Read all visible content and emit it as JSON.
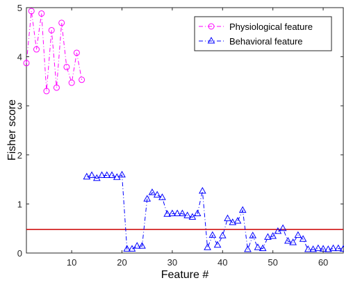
{
  "chart_data": {
    "type": "line",
    "xlabel": "Feature #",
    "ylabel": "Fisher score",
    "xlim": [
      1,
      64
    ],
    "ylim": [
      0,
      5
    ],
    "xticks": [
      "10",
      "20",
      "30",
      "40",
      "50",
      "60"
    ],
    "xtick_values": [
      10,
      20,
      30,
      40,
      50,
      60
    ],
    "yticks": [
      "0",
      "1",
      "2",
      "3",
      "4",
      "5"
    ],
    "ytick_values": [
      0,
      1,
      2,
      3,
      4,
      5
    ],
    "grid": false,
    "legend_position": "top-right",
    "threshold": {
      "y": 0.48,
      "color": "#cc0000"
    },
    "series": [
      {
        "name": "Physiological feature",
        "color": "#ff00ff",
        "marker": "circle",
        "line_style": "dash-dot",
        "x": [
          1,
          2,
          3,
          4,
          5,
          6,
          7,
          8,
          9,
          10,
          11,
          12
        ],
        "y": [
          3.87,
          4.93,
          4.15,
          4.88,
          3.3,
          4.54,
          3.37,
          4.69,
          3.79,
          3.47,
          4.08,
          3.53
        ]
      },
      {
        "name": "Behavioral feature",
        "color": "#0000ff",
        "marker": "triangle",
        "line_style": "dash-dot",
        "x": [
          13,
          14,
          15,
          16,
          17,
          18,
          19,
          20,
          21,
          22,
          23,
          24,
          25,
          26,
          27,
          28,
          29,
          30,
          31,
          32,
          33,
          34,
          35,
          36,
          37,
          38,
          39,
          40,
          41,
          42,
          43,
          44,
          45,
          46,
          47,
          48,
          49,
          50,
          51,
          52,
          53,
          54,
          55,
          56,
          57,
          58,
          59,
          60,
          61,
          62,
          63,
          64
        ],
        "y": [
          1.55,
          1.58,
          1.52,
          1.58,
          1.58,
          1.58,
          1.54,
          1.59,
          0.08,
          0.08,
          0.14,
          0.14,
          1.1,
          1.23,
          1.18,
          1.13,
          0.79,
          0.8,
          0.8,
          0.8,
          0.76,
          0.73,
          0.8,
          1.26,
          0.11,
          0.36,
          0.16,
          0.35,
          0.7,
          0.62,
          0.65,
          0.87,
          0.07,
          0.35,
          0.11,
          0.09,
          0.32,
          0.34,
          0.44,
          0.5,
          0.24,
          0.21,
          0.36,
          0.28,
          0.07,
          0.07,
          0.09,
          0.08,
          0.07,
          0.09,
          0.09,
          0.08
        ]
      }
    ]
  }
}
